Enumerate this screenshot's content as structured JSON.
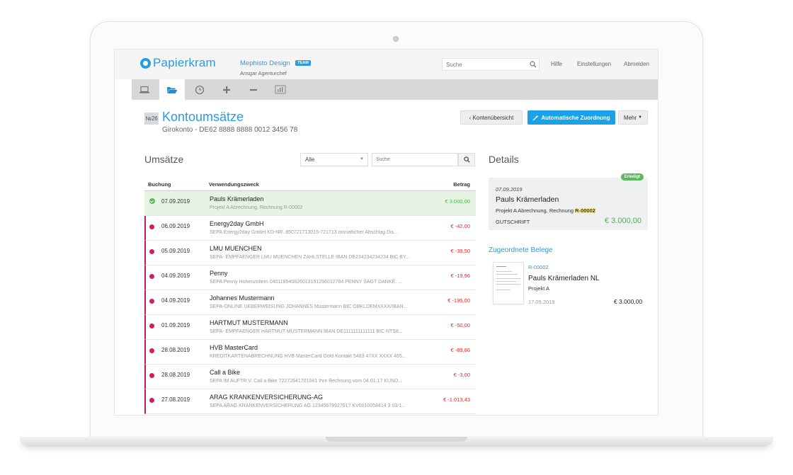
{
  "header": {
    "logo": "Papierkram",
    "company": "Mephisto Design",
    "team_badge": "TEAM",
    "user": "Ansgar Agenturchef",
    "search_placeholder": "Suche",
    "links": [
      "Hilfe",
      "Einstellungen",
      "Abmelden"
    ]
  },
  "toolbar": {
    "tools": [
      "laptop-icon",
      "folder-open-icon",
      "clock-icon",
      "plus-icon",
      "minus-icon",
      "bar-chart-icon"
    ],
    "active": "folder-open-icon"
  },
  "page": {
    "badge": "№26",
    "title": "Kontoumsätze",
    "subtitle": "Girokonto - DE62 8888 8888 0012 3456 78",
    "btn_back": "‹ Kontenübersicht",
    "btn_auto": "Automatische Zuordnung",
    "btn_more": "Mehr"
  },
  "umsaetze": {
    "title": "Umsätze",
    "filter_value": "Alle",
    "search_placeholder": "Suche",
    "columns": {
      "date": "Buchung",
      "purpose": "Verwendungszweck",
      "amount": "Betrag"
    },
    "rows": [
      {
        "date": "07.09.2019",
        "title": "Pauls Krämerladen",
        "sub": "Projekt A Abrechnung, Rechnung R-00002",
        "amount": "€ 3.000,00",
        "positive": true
      },
      {
        "date": "06.09.2019",
        "title": "Energy2day GmbH",
        "sub": "SEPA Energy2day GmbH KD-NR. 850721713015-721713 monatlicher Abschlag Dis...",
        "amount": "€ -42,00",
        "positive": false
      },
      {
        "date": "05.09.2019",
        "title": "LMU MUENCHEN",
        "sub": "SEPA- EMPFAENGER LMU MUENCHEN ZAHLSTELLE IBAN DE234234234234 BIC BY...",
        "amount": "€ -39,50",
        "positive": false
      },
      {
        "date": "04.09.2019",
        "title": "Penny",
        "sub": "SEPA Penny Hohenzollern 040118540826013191256012784 PENNY SAGT DANKE. ...",
        "amount": "€ -19,96",
        "positive": false
      },
      {
        "date": "04.09.2019",
        "title": "Johannes Mustermann",
        "sub": "SEPA-ONLINE UEBERWEISUNG JOHANNES Mustermann BIC OBKLDEMXXXX/IBAN...",
        "amount": "€ -195,00",
        "positive": false
      },
      {
        "date": "01.09.2019",
        "title": "HARTMUT MUSTERMANN",
        "sub": "SEPA- EMPFAENGER HARTMUT MUSTERMANN IBAN DE1111111111111 BIC NTS8...",
        "amount": "€ -50,00",
        "positive": false
      },
      {
        "date": "28.08.2019",
        "title": "HVB MasterCard",
        "sub": "KREDITKARTENABRECHNUNG HVB MasterCard Gold Kontakt 5483 47XX XXXX 465...",
        "amount": "€ -89,86",
        "positive": false
      },
      {
        "date": "28.08.2019",
        "title": "Call a Bike",
        "sub": "SEPA IM AUFTR.V. Call a Bike 72272641701041 Ihre Rechnung vom 04.01.17 KUND...",
        "amount": "€ -3,00",
        "positive": false
      },
      {
        "date": "27.08.2019",
        "title": "ARAG KRANKENVERSICHERUNG-AG",
        "sub": "SEPA ARAG KRANKENVERSICHERUNG AG 12345678927017 KV0010058414 3 03/1...",
        "amount": "€ -1.013,43",
        "positive": false
      }
    ]
  },
  "details": {
    "title": "Details",
    "badge": "Erledigt",
    "date": "07.09.2019",
    "name": "Pauls Krämerladen",
    "sub_prefix": "Projekt A Abrechnung, Rechnung ",
    "sub_ref": "R-00002",
    "type": "GUTSCHRIFT",
    "amount": "€ 3.000,00"
  },
  "belege": {
    "title": "Zugeordnete Belege",
    "number": "R-00002",
    "name": "Pauls Krämerladen NL",
    "project": "Projekt A",
    "date": "17.09.2019",
    "amount": "€ 3.000,00"
  },
  "colors": {
    "accent": "#2a9be0",
    "primary_button": "#1aa1e8",
    "negative": "#d32f2f",
    "positive": "#4caf50",
    "status_dot": "#d81b60"
  }
}
